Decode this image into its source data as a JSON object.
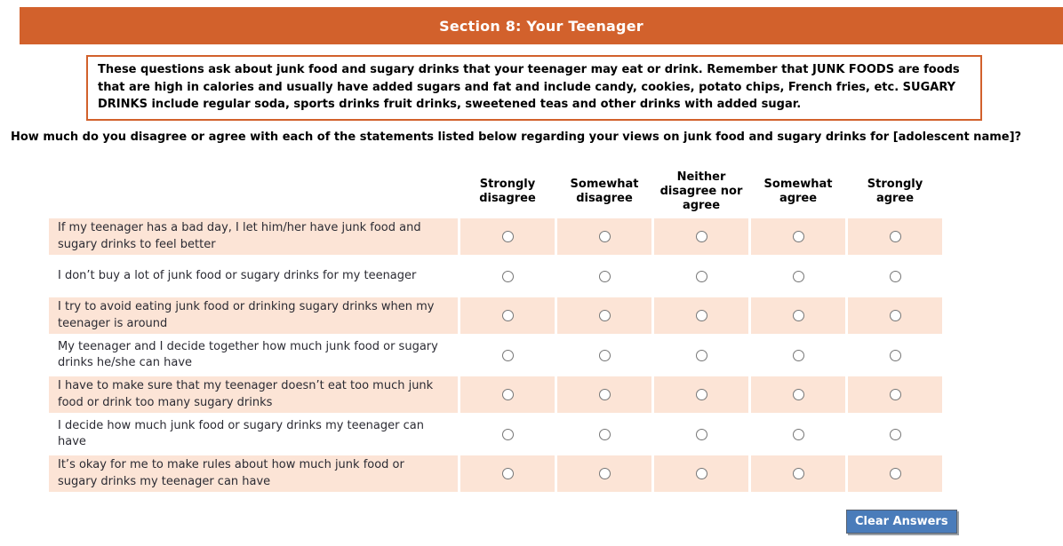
{
  "header": {
    "title": "Section 8: Your Teenager"
  },
  "instructions": "These questions ask about junk food and sugary drinks that your teenager may eat or drink. Remember that JUNK FOODS are foods that are high in calories and usually have added sugars and fat and include candy, cookies, potato chips, French fries, etc. SUGARY DRINKS include regular soda, sports drinks fruit drinks, sweetened teas and other drinks with added sugar.",
  "question": "How much do you disagree or agree with each of the statements listed below regarding your views on junk food and sugary drinks for [adolescent name]?",
  "matrix": {
    "columns": [
      "Strongly disagree",
      "Somewhat disagree",
      "Neither disagree nor agree",
      "Somewhat agree",
      "Strongly agree"
    ],
    "rows": [
      "If my teenager has a bad day, I let him/her have junk food and sugary drinks to feel better",
      "I don’t buy a lot of junk food or sugary drinks for my teenager",
      "I try to avoid eating junk food or drinking sugary drinks when my teenager is around",
      "My teenager and I decide together how much junk food or sugary drinks he/she can have",
      "I have to make sure that my teenager doesn’t eat too much junk food or drink too many sugary drinks",
      "I decide how much junk food or sugary drinks my teenager can have",
      "It’s okay for me to make rules about how much junk food or sugary drinks my teenager can have"
    ],
    "responses": [
      null,
      null,
      null,
      null,
      null,
      null,
      null
    ]
  },
  "actions": {
    "clear_button_label": "Clear Answers"
  },
  "colors": {
    "accent_orange": "#d2612c",
    "row_highlight": "#fce4d6",
    "button_blue": "#4a7cba"
  }
}
